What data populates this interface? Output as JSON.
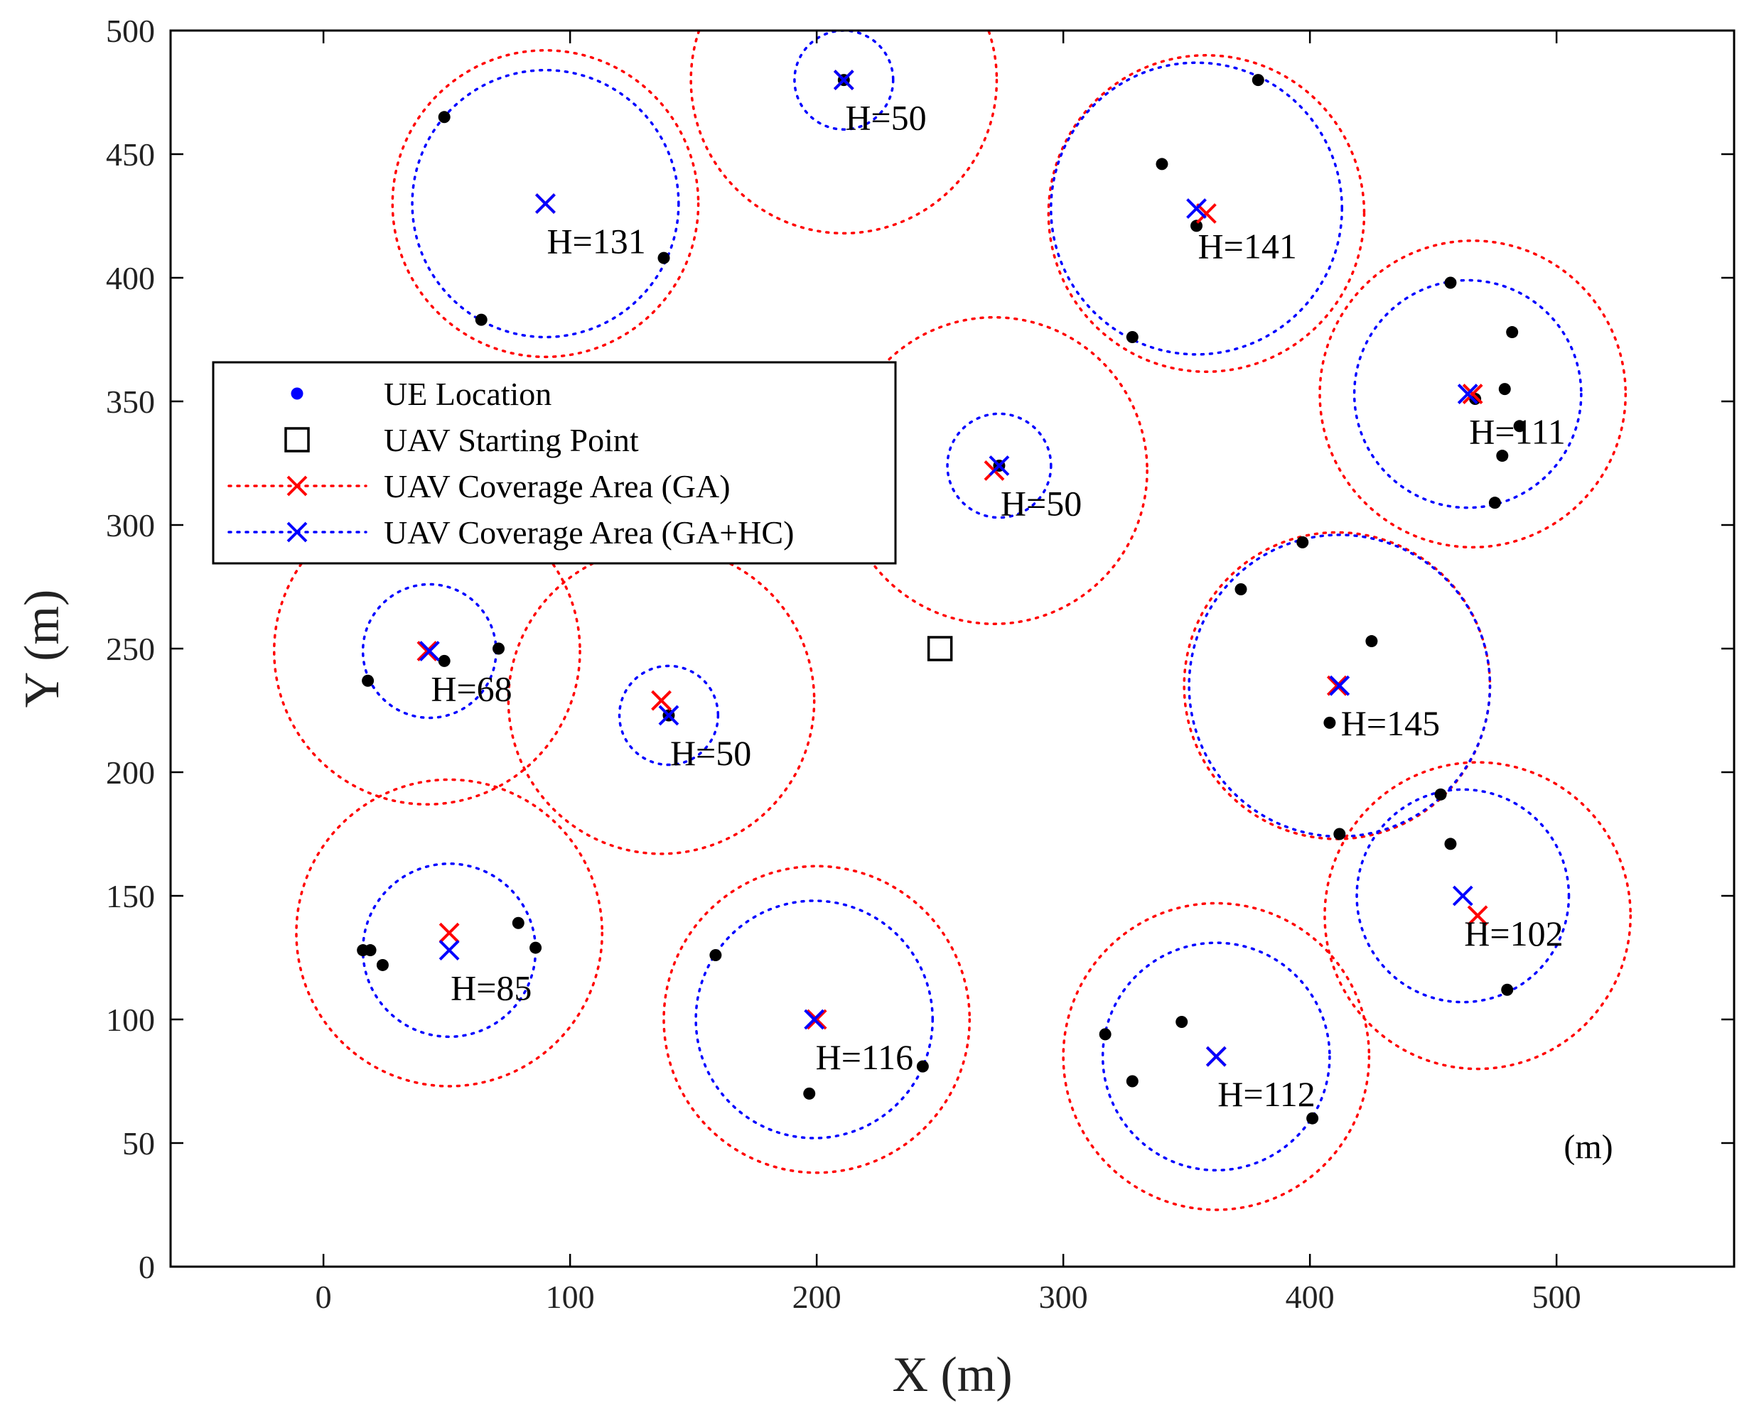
{
  "chart_data": {
    "type": "scatter",
    "xlabel": "X (m)",
    "ylabel": "Y (m)",
    "xlim": [
      -62,
      572
    ],
    "ylim": [
      0,
      500
    ],
    "xticks": [
      0,
      100,
      200,
      300,
      400,
      500
    ],
    "yticks": [
      0,
      50,
      100,
      150,
      200,
      250,
      300,
      350,
      400,
      450,
      500
    ],
    "unit_annotation": "(m)",
    "colors": {
      "ue": "#000000",
      "ga": "#ff0000",
      "gahc": "#0000ff",
      "start": "#000000",
      "legend_ue": "#0000ff"
    },
    "legend": {
      "placement": "upper-left",
      "entries": [
        {
          "label": "UE Location",
          "marker": "dot",
          "color": "#0000ff"
        },
        {
          "label": "UAV Starting Point",
          "marker": "square",
          "color": "#000000"
        },
        {
          "label": "UAV Coverage Area (GA)",
          "marker": "x-dotted",
          "color": "#ff0000"
        },
        {
          "label": "UAV Coverage Area (GA+HC)",
          "marker": "x-dotted",
          "color": "#0000ff"
        }
      ]
    },
    "starting_point": {
      "x": 250,
      "y": 250
    },
    "ue_locations": [
      [
        49,
        465
      ],
      [
        138,
        408
      ],
      [
        64,
        383
      ],
      [
        211,
        480
      ],
      [
        379,
        480
      ],
      [
        340,
        446
      ],
      [
        354,
        421
      ],
      [
        328,
        376
      ],
      [
        457,
        398
      ],
      [
        482,
        378
      ],
      [
        479,
        355
      ],
      [
        467,
        351
      ],
      [
        485,
        340
      ],
      [
        478,
        328
      ],
      [
        475,
        309
      ],
      [
        274,
        324
      ],
      [
        397,
        293
      ],
      [
        372,
        274
      ],
      [
        425,
        253
      ],
      [
        408,
        220
      ],
      [
        412,
        175
      ],
      [
        18,
        237
      ],
      [
        71,
        250
      ],
      [
        49,
        245
      ],
      [
        140,
        223
      ],
      [
        16,
        128
      ],
      [
        19,
        128
      ],
      [
        24,
        122
      ],
      [
        79,
        139
      ],
      [
        86,
        129
      ],
      [
        159,
        126
      ],
      [
        243,
        81
      ],
      [
        197,
        70
      ],
      [
        317,
        94
      ],
      [
        348,
        99
      ],
      [
        328,
        75
      ],
      [
        401,
        60
      ],
      [
        453,
        191
      ],
      [
        457,
        171
      ],
      [
        480,
        112
      ]
    ],
    "uavs": [
      {
        "label": "H=131",
        "ga": {
          "x": 90,
          "y": 430,
          "r": 62
        },
        "gahc": {
          "x": 90,
          "y": 430,
          "r": 54
        }
      },
      {
        "label": "H=50",
        "ga": {
          "x": 211,
          "y": 480,
          "r": 62
        },
        "gahc": {
          "x": 211,
          "y": 480,
          "r": 20
        }
      },
      {
        "label": "H=141",
        "ga": {
          "x": 358,
          "y": 426,
          "r": 64
        },
        "gahc": {
          "x": 354,
          "y": 428,
          "r": 59
        }
      },
      {
        "label": "H=111",
        "ga": {
          "x": 466,
          "y": 353,
          "r": 62
        },
        "gahc": {
          "x": 464,
          "y": 353,
          "r": 46
        }
      },
      {
        "label": "H=50",
        "ga": {
          "x": 272,
          "y": 322,
          "r": 62
        },
        "gahc": {
          "x": 274,
          "y": 324,
          "r": 21
        }
      },
      {
        "label": "H=145",
        "ga": {
          "x": 411,
          "y": 235,
          "r": 62
        },
        "gahc": {
          "x": 412,
          "y": 235,
          "r": 61
        }
      },
      {
        "label": "H=68",
        "ga": {
          "x": 42,
          "y": 249,
          "r": 62
        },
        "gahc": {
          "x": 43,
          "y": 249,
          "r": 27
        }
      },
      {
        "label": "H=50",
        "ga": {
          "x": 137,
          "y": 229,
          "r": 62
        },
        "gahc": {
          "x": 140,
          "y": 223,
          "r": 20
        }
      },
      {
        "label": "H=102",
        "ga": {
          "x": 468,
          "y": 142,
          "r": 62
        },
        "gahc": {
          "x": 462,
          "y": 150,
          "r": 43
        }
      },
      {
        "label": "H=85",
        "ga": {
          "x": 51,
          "y": 135,
          "r": 62
        },
        "gahc": {
          "x": 51,
          "y": 128,
          "r": 35
        }
      },
      {
        "label": "H=116",
        "ga": {
          "x": 200,
          "y": 100,
          "r": 62
        },
        "gahc": {
          "x": 199,
          "y": 100,
          "r": 48
        }
      },
      {
        "label": "H=112",
        "ga": {
          "x": 362,
          "y": 85,
          "r": 62
        },
        "gahc": {
          "x": 362,
          "y": 85,
          "r": 46
        }
      }
    ]
  }
}
